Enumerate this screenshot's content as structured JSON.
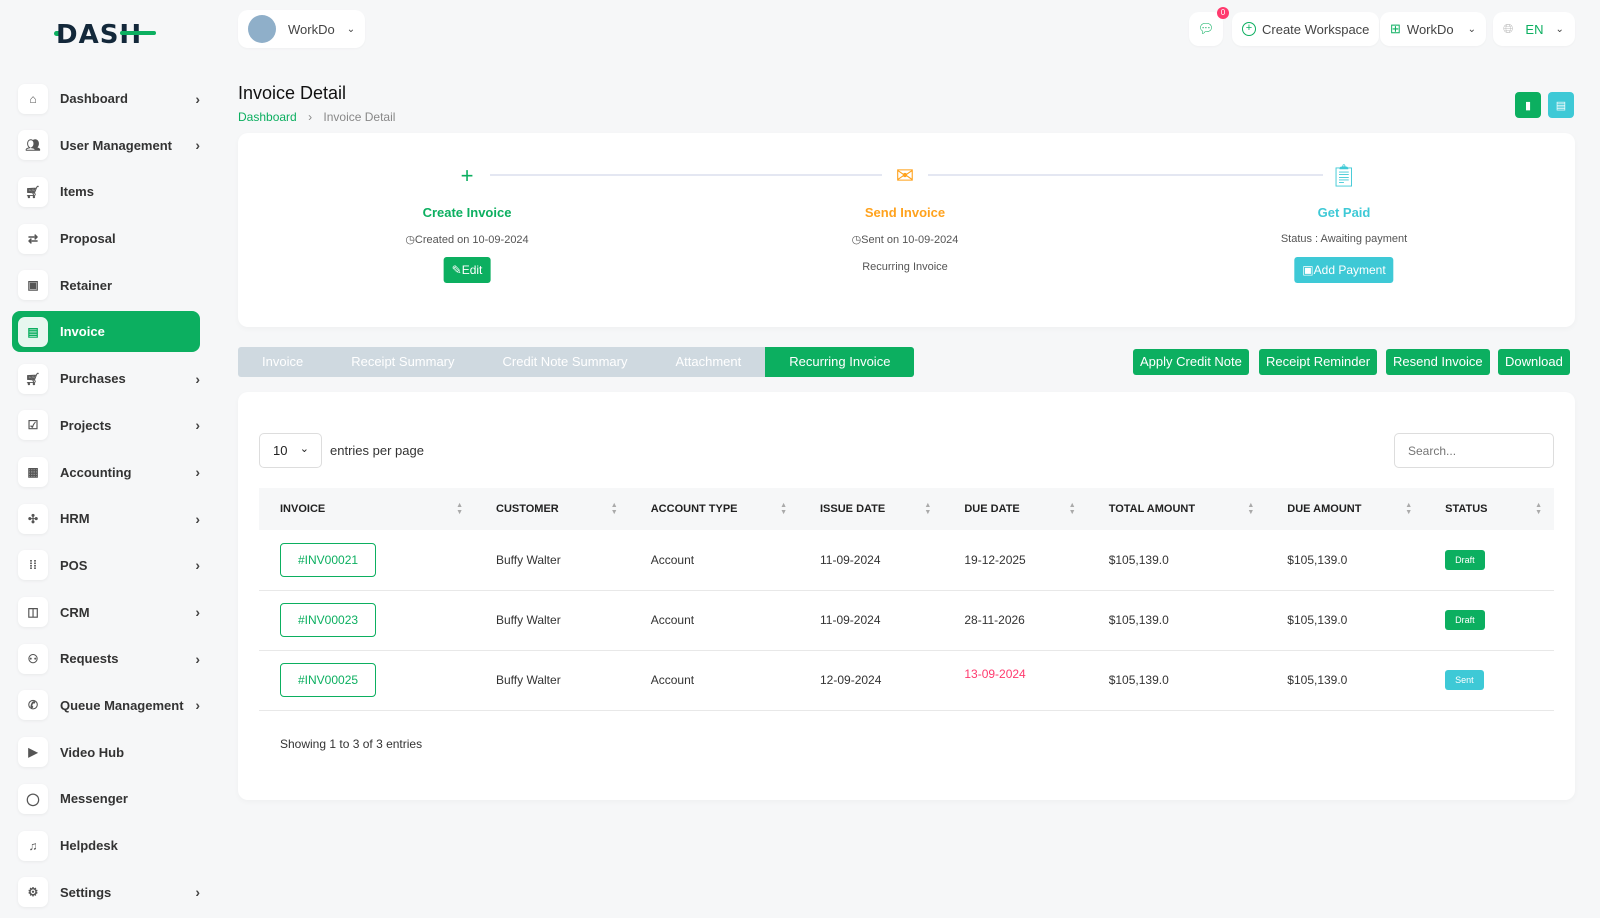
{
  "brand": {
    "logo": "DASH"
  },
  "workspace_switch": {
    "label": "WorkDo"
  },
  "header": {
    "notification_count": "0",
    "create_workspace": "Create Workspace",
    "workspace": "WorkDo",
    "language": "EN"
  },
  "sidebar": {
    "items": [
      {
        "label": "Dashboard",
        "icon": "home-icon",
        "chevron": true
      },
      {
        "label": "User Management",
        "icon": "users-icon",
        "chevron": true
      },
      {
        "label": "Items",
        "icon": "cart-icon",
        "chevron": false
      },
      {
        "label": "Proposal",
        "icon": "proposal-icon",
        "chevron": false
      },
      {
        "label": "Retainer",
        "icon": "retainer-icon",
        "chevron": false
      },
      {
        "label": "Invoice",
        "icon": "invoice-icon",
        "chevron": false,
        "active": true
      },
      {
        "label": "Purchases",
        "icon": "cart-icon",
        "chevron": true
      },
      {
        "label": "Projects",
        "icon": "check-square-icon",
        "chevron": true
      },
      {
        "label": "Accounting",
        "icon": "grid-icon",
        "chevron": true
      },
      {
        "label": "HRM",
        "icon": "hrm-icon",
        "chevron": true
      },
      {
        "label": "POS",
        "icon": "dots-grid-icon",
        "chevron": true
      },
      {
        "label": "CRM",
        "icon": "crm-icon",
        "chevron": true
      },
      {
        "label": "Requests",
        "icon": "user-plus-icon",
        "chevron": true
      },
      {
        "label": "Queue Management",
        "icon": "phone-icon",
        "chevron": true
      },
      {
        "label": "Video Hub",
        "icon": "video-icon",
        "chevron": false
      },
      {
        "label": "Messenger",
        "icon": "chat-icon",
        "chevron": false
      },
      {
        "label": "Helpdesk",
        "icon": "headset-icon",
        "chevron": false
      },
      {
        "label": "Settings",
        "icon": "gear-icon",
        "chevron": true
      }
    ]
  },
  "page": {
    "title": "Invoice Detail",
    "breadcrumb": [
      "Dashboard",
      "Invoice Detail"
    ]
  },
  "steps": [
    {
      "title": "Create Invoice",
      "sub": "Created on 10-09-2024",
      "button": "Edit",
      "color": "#0caf60"
    },
    {
      "title": "Send Invoice",
      "sub": "Sent on 10-09-2024",
      "sub2": "Recurring Invoice",
      "color": "#ffa21d"
    },
    {
      "title": "Get Paid",
      "sub": "Status : Awaiting payment",
      "button": "Add Payment",
      "color": "#3ec9d6"
    }
  ],
  "tabs": [
    "Invoice",
    "Receipt Summary",
    "Credit Note Summary",
    "Attachment",
    "Recurring Invoice"
  ],
  "active_tab": "Recurring Invoice",
  "actions": [
    "Apply Credit Note",
    "Receipt Reminder",
    "Resend Invoice",
    "Download"
  ],
  "table": {
    "page_size": "10",
    "entries_label": "entries per page",
    "search_placeholder": "Search...",
    "columns": [
      "INVOICE",
      "CUSTOMER",
      "ACCOUNT TYPE",
      "ISSUE DATE",
      "DUE DATE",
      "TOTAL AMOUNT",
      "DUE AMOUNT",
      "STATUS"
    ],
    "rows": [
      {
        "invoice": "#INV00021",
        "customer": "Buffy Walter",
        "account_type": "Account",
        "issue_date": "11-09-2024",
        "due_date": "19-12-2025",
        "total": "$105,139.0",
        "due": "$105,139.0",
        "status": "Draft",
        "overdue": false
      },
      {
        "invoice": "#INV00023",
        "customer": "Buffy Walter",
        "account_type": "Account",
        "issue_date": "11-09-2024",
        "due_date": "28-11-2026",
        "total": "$105,139.0",
        "due": "$105,139.0",
        "status": "Draft",
        "overdue": false
      },
      {
        "invoice": "#INV00025",
        "customer": "Buffy Walter",
        "account_type": "Account",
        "issue_date": "12-09-2024",
        "due_date": "13-09-2024",
        "total": "$105,139.0",
        "due": "$105,139.0",
        "status": "Sent",
        "overdue": true
      }
    ],
    "footer": "Showing 1 to 3 of 3 entries"
  },
  "colors": {
    "primary": "#0caf60",
    "info": "#3ec9d6",
    "warning": "#ffa21d",
    "danger": "#ff3a6e"
  }
}
